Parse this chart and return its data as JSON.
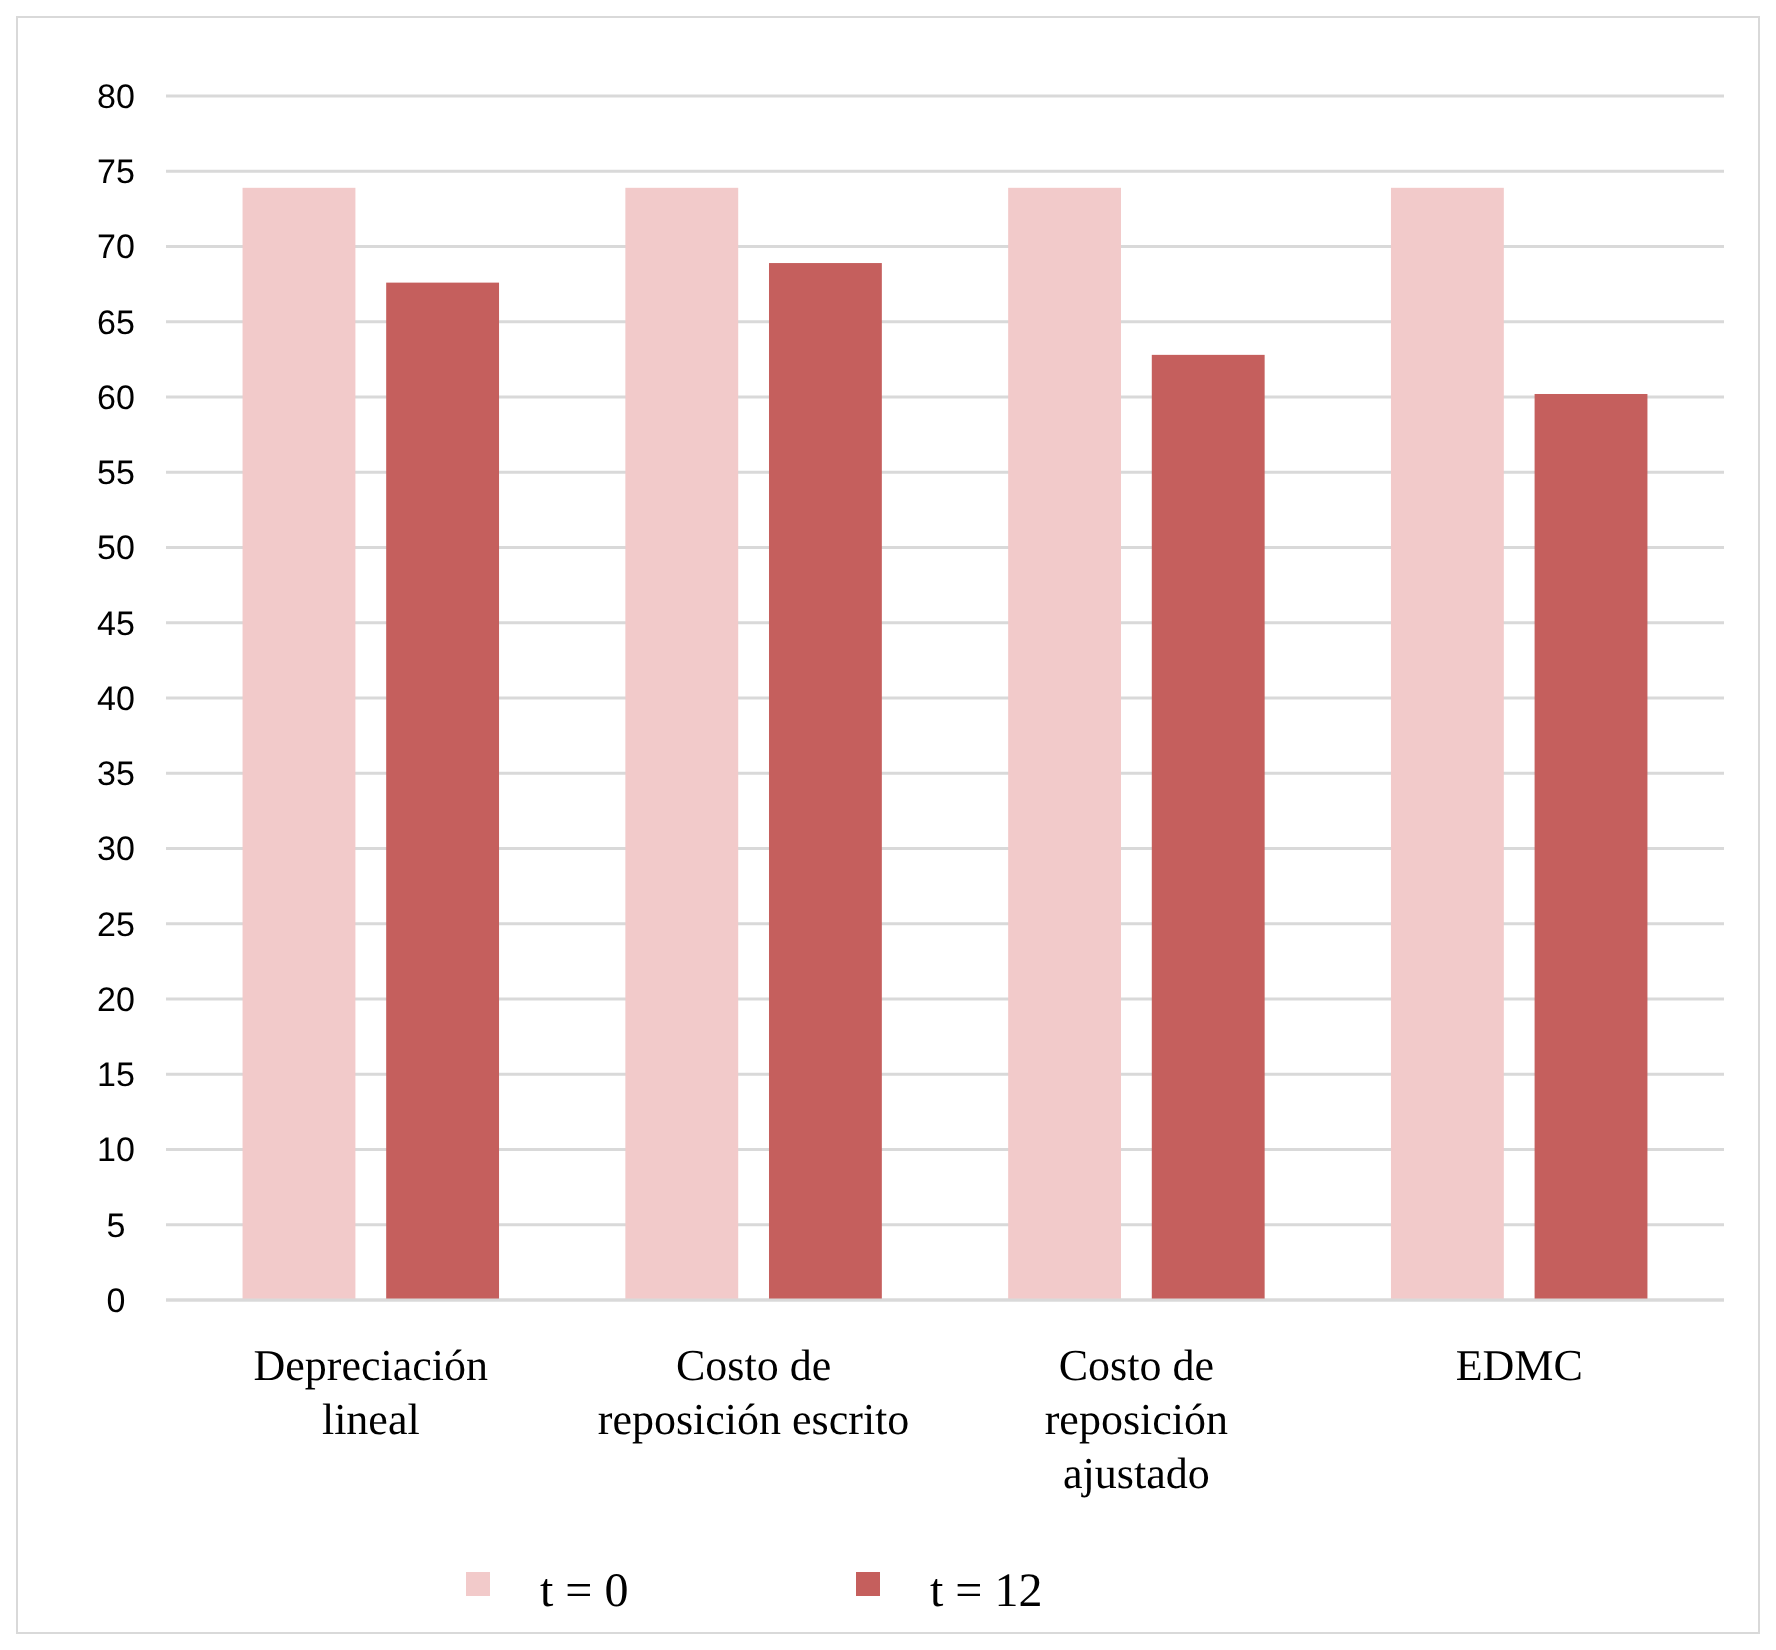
{
  "chart_data": {
    "type": "bar",
    "categories": [
      "Depreciación lineal",
      "Costo de reposición escrito",
      "Costo de reposición ajustado",
      "EDMC"
    ],
    "series": [
      {
        "name": "t = 0",
        "color": "#f2caca",
        "values": [
          73.9,
          73.9,
          73.9,
          73.9
        ]
      },
      {
        "name": "t = 12",
        "color": "#c55f5d",
        "values": [
          67.6,
          68.9,
          62.8,
          60.2
        ]
      }
    ],
    "ylim": [
      0,
      80
    ],
    "yticks": [
      0,
      5,
      10,
      15,
      20,
      25,
      30,
      35,
      40,
      45,
      50,
      55,
      60,
      65,
      70,
      75,
      80
    ],
    "grid": "y",
    "legend": "bottom"
  }
}
